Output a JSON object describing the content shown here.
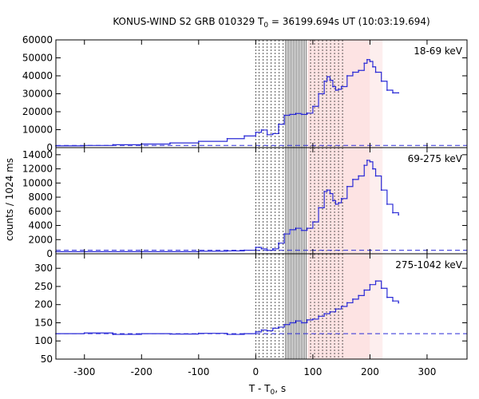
{
  "chart_data": {
    "type": "line",
    "title_prefix": "KONUS-WIND S2 GRB 010329 T",
    "title_sub": "0",
    "title_suffix": " = 36199.694s UT (10:03:19.694)",
    "xlabel_prefix": "T - T",
    "xlabel_sub": "0",
    "xlabel_suffix": ", s",
    "ylabel": "counts / 1024 ms",
    "xlim": [
      -350,
      370
    ],
    "xticks": [
      -300,
      -200,
      -100,
      0,
      100,
      200,
      300
    ],
    "line_color": "#2b2bd6",
    "shade_regions": [
      {
        "x0": 90,
        "x1": 200,
        "color": "#fde3e3"
      },
      {
        "x0": 200,
        "x1": 222,
        "color": "#fdeeee"
      }
    ],
    "vlines": [
      0,
      6,
      13,
      20,
      27,
      34,
      41,
      48,
      96,
      103,
      110,
      117,
      124,
      131,
      138,
      145,
      152
    ],
    "hatch_region": [
      52,
      90
    ],
    "panels": [
      {
        "label": "18-69 keV",
        "ylim": [
          0,
          60000
        ],
        "yticks": [
          0,
          10000,
          20000,
          30000,
          40000,
          50000,
          60000
        ],
        "background": 1200,
        "x": [
          -350,
          -300,
          -250,
          -200,
          -150,
          -100,
          -50,
          -20,
          0,
          10,
          20,
          30,
          40,
          50,
          60,
          70,
          80,
          90,
          100,
          110,
          120,
          125,
          130,
          135,
          140,
          145,
          150,
          160,
          170,
          180,
          190,
          195,
          200,
          205,
          210,
          220,
          230,
          240,
          250
        ],
        "y": [
          1000,
          1200,
          1600,
          2000,
          2600,
          3500,
          5000,
          6500,
          8500,
          9800,
          7200,
          7800,
          13000,
          18000,
          18500,
          19000,
          18500,
          19200,
          23000,
          30000,
          37000,
          39500,
          37500,
          34000,
          32000,
          32500,
          34000,
          40000,
          42000,
          43000,
          47000,
          49000,
          48000,
          45000,
          42000,
          37000,
          32000,
          30500,
          30500
        ]
      },
      {
        "label": "69-275 keV",
        "ylim": [
          0,
          15000
        ],
        "yticks": [
          0,
          2000,
          4000,
          6000,
          8000,
          10000,
          12000,
          14000
        ],
        "background": 500,
        "x": [
          -350,
          -200,
          -100,
          -50,
          -20,
          0,
          10,
          20,
          30,
          40,
          50,
          60,
          70,
          80,
          90,
          100,
          110,
          120,
          125,
          130,
          135,
          140,
          145,
          150,
          160,
          170,
          180,
          190,
          195,
          200,
          205,
          210,
          220,
          230,
          240,
          250
        ],
        "y": [
          300,
          300,
          350,
          400,
          500,
          900,
          700,
          500,
          700,
          1500,
          2800,
          3400,
          3600,
          3300,
          3600,
          4500,
          6500,
          8800,
          9000,
          8500,
          7500,
          7000,
          7200,
          7800,
          9500,
          10500,
          11000,
          12500,
          13200,
          13000,
          12000,
          11000,
          9000,
          7000,
          5800,
          5500
        ]
      },
      {
        "label": "275-1042 keV",
        "ylim": [
          50,
          340
        ],
        "yticks": [
          50,
          100,
          150,
          200,
          250,
          300
        ],
        "background": 120,
        "x": [
          -350,
          -300,
          -250,
          -200,
          -150,
          -100,
          -50,
          -20,
          0,
          10,
          20,
          30,
          40,
          50,
          60,
          70,
          80,
          90,
          100,
          110,
          120,
          130,
          140,
          150,
          160,
          170,
          180,
          190,
          200,
          210,
          220,
          230,
          240,
          250
        ],
        "y": [
          120,
          122,
          118,
          120,
          119,
          121,
          118,
          120,
          125,
          130,
          128,
          135,
          138,
          145,
          150,
          155,
          150,
          158,
          160,
          168,
          175,
          180,
          188,
          195,
          205,
          215,
          225,
          240,
          255,
          265,
          245,
          220,
          210,
          205
        ]
      }
    ]
  }
}
